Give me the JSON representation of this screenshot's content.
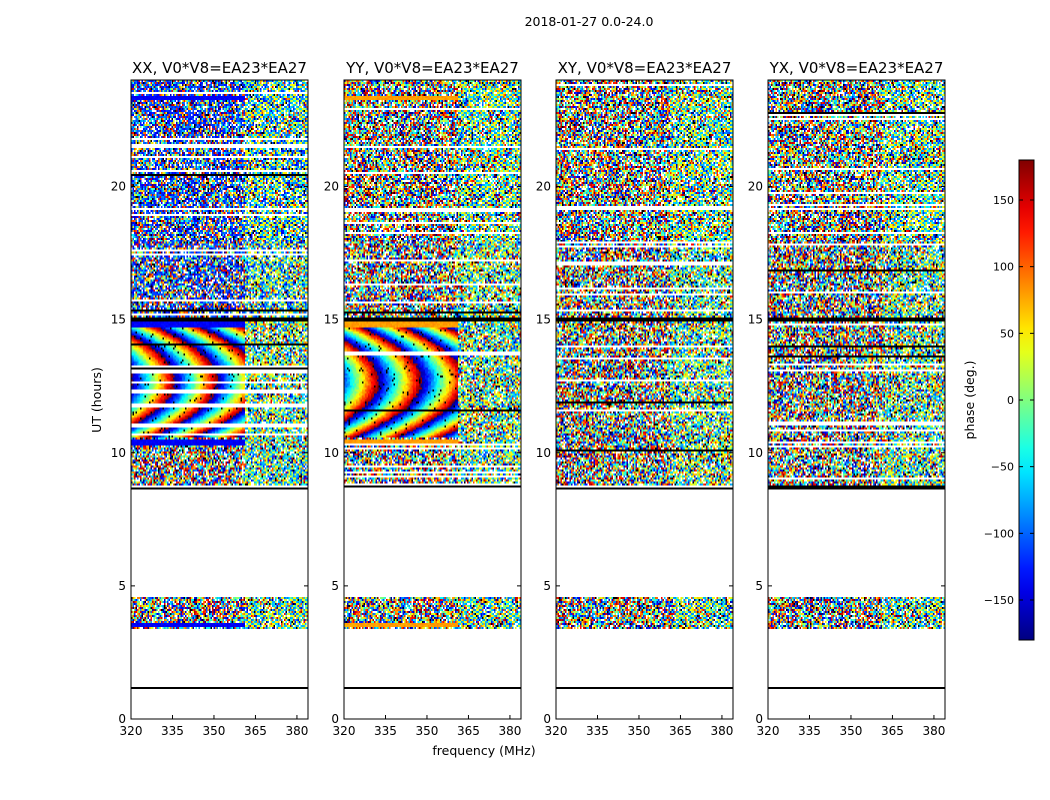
{
  "chart_data": {
    "type": "heatmap",
    "suptitle": "2018-01-27 0.0-24.0",
    "xlabel": "frequency (MHz)",
    "ylabel": "UT (hours)",
    "xlim": [
      320,
      384
    ],
    "ylim": [
      0,
      24
    ],
    "xticks": [
      320,
      335,
      350,
      365,
      380
    ],
    "yticks": [
      0,
      5,
      10,
      15,
      20
    ],
    "panels": [
      {
        "title": "XX, V0*V8=EA23*EA27",
        "pol": "XX"
      },
      {
        "title": "YY, V0*V8=EA23*EA27",
        "pol": "YY"
      },
      {
        "title": "XY, V0*V8=EA23*EA27",
        "pol": "XY"
      },
      {
        "title": "YX, V0*V8=EA23*EA27",
        "pol": "YX"
      }
    ],
    "colorbar": {
      "label": "phase (deg.)",
      "vmin": -180,
      "vmax": 180,
      "ticks": [
        -150,
        -100,
        -50,
        0,
        50,
        100,
        150
      ],
      "colormap": "jet"
    },
    "data_gaps_hours": [
      [
        1.2,
        3.4
      ],
      [
        4.6,
        8.6
      ]
    ]
  }
}
